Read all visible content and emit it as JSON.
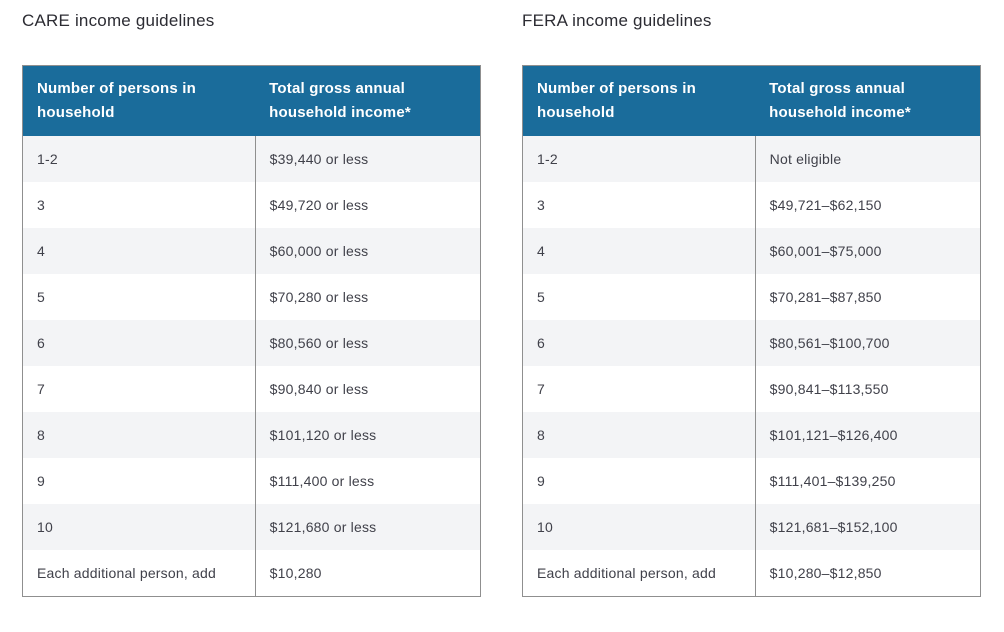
{
  "colors": {
    "header_bg": "#1a6c9b",
    "header_text": "#ffffff",
    "stripe": "#f3f4f6",
    "row_white": "#ffffff",
    "border": "#8f8f8f",
    "cell_text": "#40414a",
    "title_text": "#2c2c33",
    "page_bg": "#ffffff"
  },
  "tables": [
    {
      "title": "CARE income guidelines",
      "columns": [
        "Number of persons in household",
        "Total gross annual household income*"
      ],
      "rows": [
        [
          "1-2",
          "$39,440 or less"
        ],
        [
          "3",
          "$49,720 or less"
        ],
        [
          "4",
          "$60,000 or less"
        ],
        [
          "5",
          "$70,280 or less"
        ],
        [
          "6",
          "$80,560 or less"
        ],
        [
          "7",
          "$90,840 or less"
        ],
        [
          "8",
          "$101,120 or less"
        ],
        [
          "9",
          "$111,400 or less"
        ],
        [
          "10",
          "$121,680 or less"
        ],
        [
          "Each additional person, add",
          "$10,280"
        ]
      ]
    },
    {
      "title": "FERA income guidelines",
      "columns": [
        "Number of persons in household",
        "Total gross annual household income*"
      ],
      "rows": [
        [
          "1-2",
          "Not eligible"
        ],
        [
          "3",
          "$49,721–$62,150"
        ],
        [
          "4",
          "$60,001–$75,000"
        ],
        [
          "5",
          "$70,281–$87,850"
        ],
        [
          "6",
          "$80,561–$100,700"
        ],
        [
          "7",
          "$90,841–$113,550"
        ],
        [
          "8",
          "$101,121–$126,400"
        ],
        [
          "9",
          "$111,401–$139,250"
        ],
        [
          "10",
          "$121,681–$152,100"
        ],
        [
          "Each additional person, add",
          "$10,280–$12,850"
        ]
      ]
    }
  ]
}
